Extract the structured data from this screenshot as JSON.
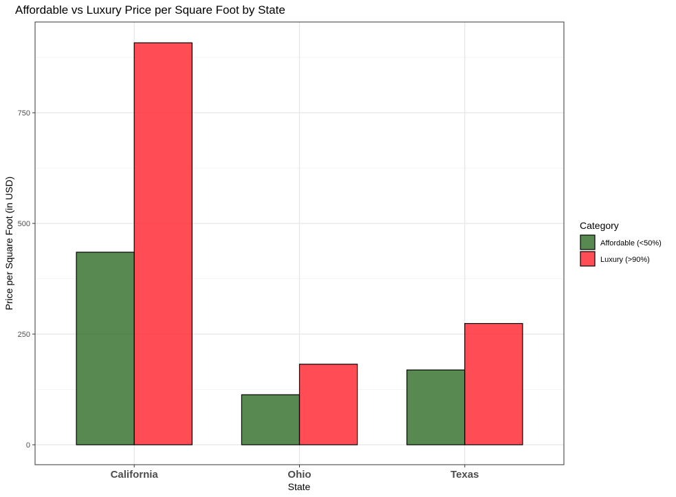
{
  "chart_data": {
    "type": "bar",
    "title": "Affordable vs Luxury Price per Square Foot by State",
    "xlabel": "State",
    "ylabel": "Price per Square Foot (in USD)",
    "categories": [
      "California",
      "Ohio",
      "Texas"
    ],
    "series": [
      {
        "name": "Affordable (<50%)",
        "color": "#2e6b25",
        "values": [
          435,
          113,
          169
        ]
      },
      {
        "name": "Luxury (>90%)",
        "color": "#ff1f2b",
        "values": [
          908,
          182,
          274
        ]
      }
    ],
    "ylim": [
      -45,
      955
    ],
    "yticks": [
      0,
      250,
      500,
      750
    ],
    "grid": true,
    "legend": {
      "title": "Category",
      "position": "right"
    }
  }
}
